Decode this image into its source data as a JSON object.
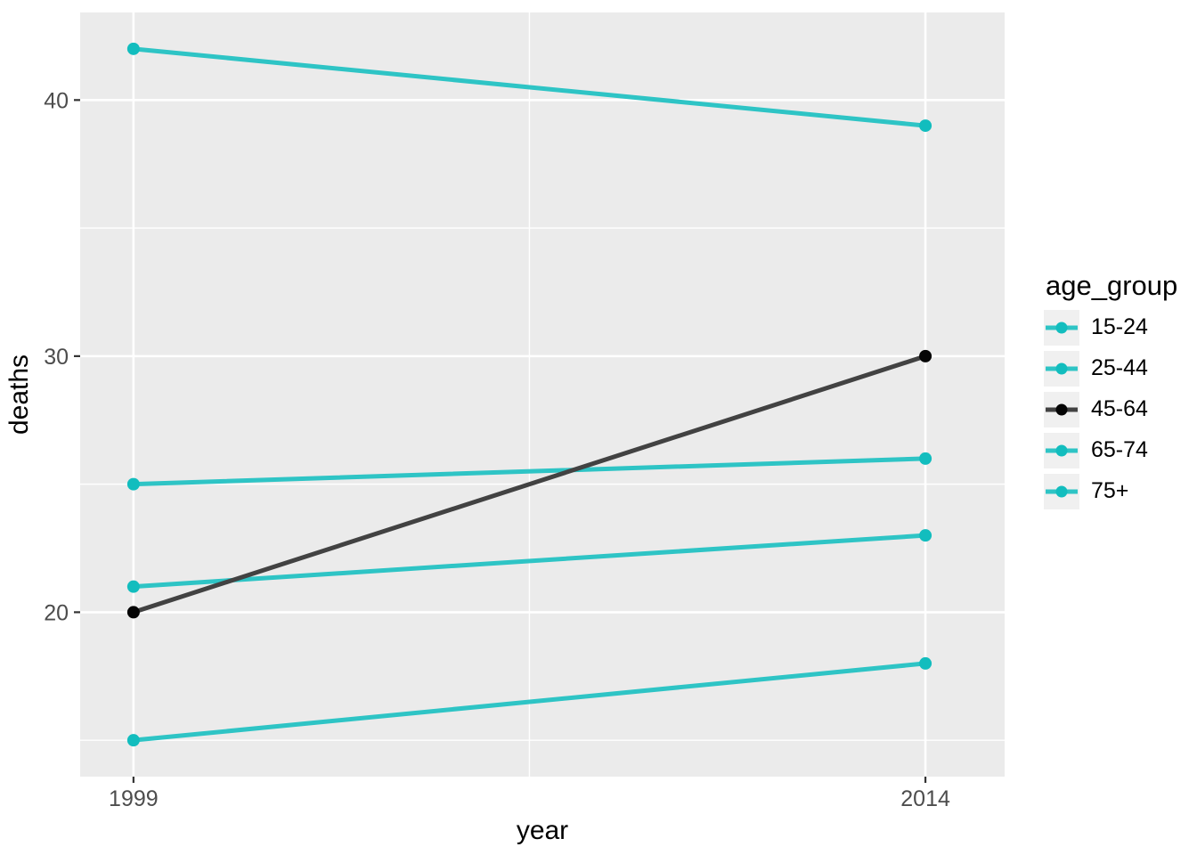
{
  "figure": {
    "background": "#FFFFFF",
    "panel_background": "#EBEBEB",
    "grid_color": "#FFFFFF",
    "legend_key_background": "#F0F0F0",
    "tick_mark_color": "#333333",
    "tick_label_color": "#4D4D4D",
    "axis_title_color": "#000000"
  },
  "chart_data": {
    "type": "line",
    "title": "",
    "xlabel": "year",
    "ylabel": "deaths",
    "x": [
      1999,
      2014
    ],
    "x_tick_labels": [
      "1999",
      "2014"
    ],
    "y_ticks": [
      20,
      30,
      40
    ],
    "y_tick_labels": [
      "20",
      "30",
      "40"
    ],
    "y_minor_gridlines": [
      15,
      25,
      35
    ],
    "x_minor_gridlines": [
      2006.5
    ],
    "xlim": [
      1997.99,
      2015.5
    ],
    "ylim": [
      13.58,
      43.42
    ],
    "grid": true,
    "legend_title": "age_group",
    "legend_position": "right",
    "series": [
      {
        "name": "15-24",
        "color": "#2EC4C5",
        "point_color": "#12BDBE",
        "values": [
          15,
          18
        ]
      },
      {
        "name": "25-44",
        "color": "#2EC4C5",
        "point_color": "#12BDBE",
        "values": [
          21,
          23
        ]
      },
      {
        "name": "45-64",
        "color": "#424242",
        "point_color": "#050505",
        "values": [
          20,
          30
        ]
      },
      {
        "name": "65-74",
        "color": "#2EC4C5",
        "point_color": "#12BDBE",
        "values": [
          25,
          26
        ]
      },
      {
        "name": "75+",
        "color": "#2EC4C5",
        "point_color": "#12BDBE",
        "values": [
          42,
          39
        ]
      }
    ]
  }
}
